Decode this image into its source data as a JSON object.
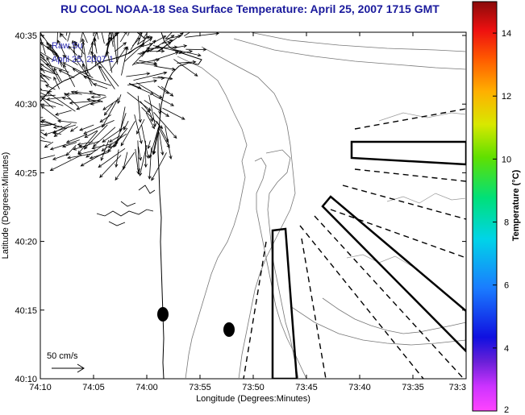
{
  "title": "RU COOL  NOAA-18  Sea Surface Temperature:  April 25, 2007 1715 GMT",
  "overlay": {
    "line1": "Raw Su",
    "line2": "April 25, 2007 1"
  },
  "scale_label": "50 cm/s",
  "axes": {
    "xlabel": "Longitude (Degrees:Minutes)",
    "ylabel": "Latitude (Degrees:Minutes)",
    "x_ticks": [
      "74:10",
      "74:05",
      "74:00",
      "73:55",
      "73:50",
      "73:45",
      "73:40",
      "73:35",
      "73:3"
    ],
    "y_ticks": [
      "40:35",
      "40:30",
      "40:25",
      "40:20",
      "40:15",
      "40:10"
    ]
  },
  "colorbar": {
    "label": "Temperature (°C)",
    "ticks": [
      "14",
      "12",
      "10",
      "8",
      "6",
      "4",
      "2"
    ],
    "range": [
      2,
      15
    ]
  },
  "colors": {
    "title": "#1a1a9c",
    "annotation": "#2b2bb0"
  },
  "markers": [
    "dot-1",
    "dot-2"
  ]
}
